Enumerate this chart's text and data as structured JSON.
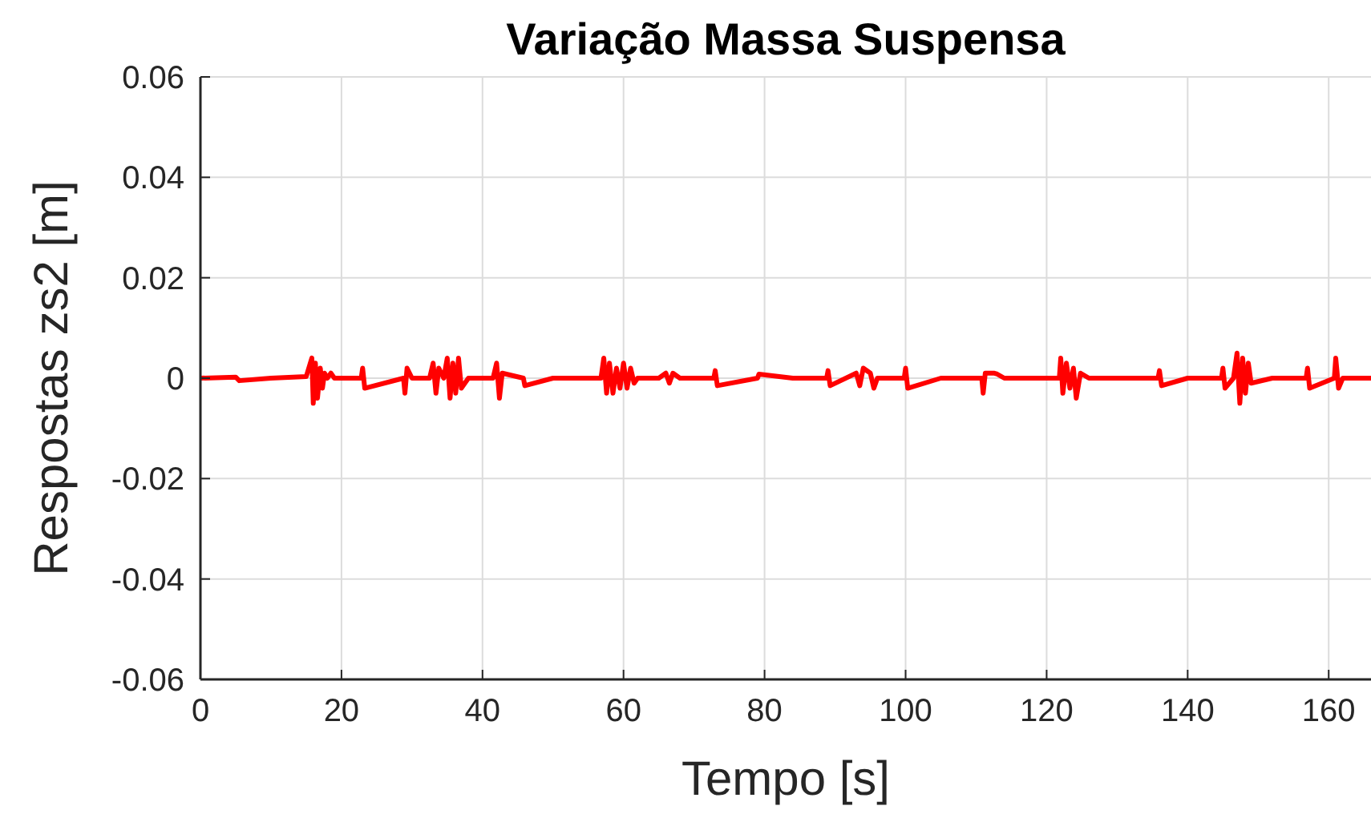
{
  "chart_data": {
    "type": "line",
    "title": "Variação Massa Suspensa",
    "xlabel": "Tempo [s]",
    "ylabel": "Respostas zs2 [m]",
    "xlim": [
      0,
      166
    ],
    "ylim": [
      -0.06,
      0.06
    ],
    "xticks": [
      0,
      20,
      40,
      60,
      80,
      100,
      120,
      140,
      160
    ],
    "yticks": [
      -0.06,
      -0.04,
      -0.02,
      0,
      0.02,
      0.04,
      0.06
    ],
    "grid": true,
    "marker": "none",
    "line_style": "solid",
    "series": [
      {
        "color": "#ff0000",
        "x": [
          0,
          5,
          5.5,
          10,
          15,
          15.8,
          16,
          16.3,
          16.6,
          17,
          17.3,
          17.6,
          18,
          18.5,
          19,
          22.8,
          23,
          23.3,
          28.8,
          29,
          29.3,
          30,
          32.5,
          33,
          33.4,
          33.8,
          34.5,
          35,
          35.4,
          35.8,
          36.2,
          36.6,
          37,
          38,
          41.5,
          42,
          42.4,
          42.8,
          45.8,
          46,
          50,
          56.8,
          57.2,
          57.6,
          58,
          58.5,
          59,
          59.5,
          60,
          60.5,
          61,
          61.5,
          62,
          65,
          66,
          66.5,
          67,
          68,
          72.8,
          73,
          73.3,
          79,
          79.2,
          84,
          88.8,
          89,
          89.3,
          93,
          93.5,
          94,
          95,
          95.5,
          96,
          99.8,
          100,
          100.3,
          105,
          110.8,
          111,
          111.3,
          112.5,
          113,
          114,
          121.8,
          122,
          122.3,
          122.8,
          123.3,
          123.8,
          124.2,
          124.8,
          126,
          130,
          135.8,
          136,
          136.3,
          140,
          144.8,
          145,
          145.3,
          146.5,
          147,
          147.4,
          147.8,
          148.2,
          148.6,
          149,
          152,
          156.8,
          157,
          157.3,
          160.8,
          161,
          161.4,
          162,
          166
        ],
        "values": [
          0,
          0.0002,
          -0.0005,
          0,
          0.0003,
          0.004,
          -0.005,
          0.003,
          -0.004,
          0.002,
          -0.002,
          0.001,
          0,
          0.001,
          0,
          0,
          0.002,
          -0.002,
          0,
          -0.003,
          0.002,
          0,
          0,
          0.003,
          -0.003,
          0.002,
          0,
          0.004,
          -0.004,
          0.003,
          -0.003,
          0.004,
          -0.002,
          0,
          0,
          0.003,
          -0.004,
          0.001,
          0,
          -0.0015,
          0,
          0,
          0.004,
          -0.003,
          0.003,
          -0.003,
          0.002,
          -0.002,
          0.003,
          -0.002,
          0.002,
          -0.001,
          0,
          0,
          0.001,
          -0.001,
          0.001,
          0,
          0,
          0.0015,
          -0.0015,
          0,
          0.0008,
          0,
          0,
          0.0015,
          -0.0015,
          0.001,
          -0.0015,
          0.002,
          0.001,
          -0.002,
          0,
          0,
          0.002,
          -0.002,
          0,
          0,
          -0.003,
          0.001,
          0.001,
          0.0008,
          0,
          0,
          0.004,
          -0.003,
          0.003,
          -0.002,
          0.002,
          -0.004,
          0.001,
          0,
          0,
          0,
          0.0015,
          -0.0015,
          0,
          0,
          0.002,
          -0.002,
          0,
          0.005,
          -0.005,
          0.004,
          -0.003,
          0.003,
          -0.001,
          0,
          0,
          0.002,
          -0.002,
          0,
          0.004,
          -0.002,
          0,
          0
        ]
      }
    ]
  }
}
